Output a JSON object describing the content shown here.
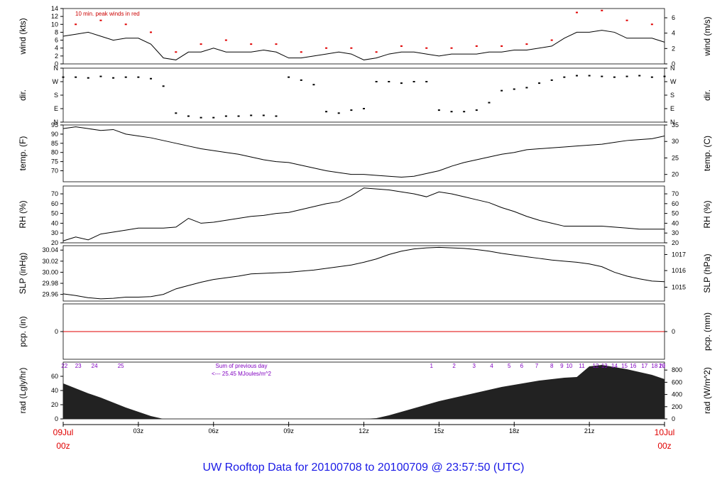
{
  "footer": {
    "title": "UW Rooftop Data for 20100708  to  20100709 @ 23:57:50  (UTC)"
  },
  "chart_data": {
    "type": "line",
    "time_axis": {
      "hours": [
        0,
        3,
        6,
        9,
        12,
        15,
        18,
        21,
        24
      ],
      "tick_labels": [
        "09Jul",
        "03z",
        "06z",
        "09z",
        "12z",
        "15z",
        "18z",
        "21z",
        "10Jul"
      ],
      "start_label": [
        "09Jul",
        "00z"
      ],
      "end_label": [
        "10Jul",
        "00z"
      ],
      "date_label_color": "#e00000"
    },
    "panels": [
      {
        "id": "wind",
        "ylabel_left": "wind (kts)",
        "ylabel_right": "wind (m/s)",
        "ylim": [
          0,
          14
        ],
        "yticks_left": [
          0,
          2,
          4,
          6,
          8,
          10,
          12,
          14
        ],
        "yticks_right": [
          {
            "label": "0",
            "value": 0
          },
          {
            "label": "2",
            "value": 3.89
          },
          {
            "label": "4",
            "value": 7.78
          },
          {
            "label": "6",
            "value": 11.66
          }
        ],
        "annotation": "10 min. peak winds in red",
        "annotation_color": "#cc0000",
        "series": [
          {
            "name": "wind",
            "color": "#000000",
            "x": [
              0,
              0.5,
              1,
              1.5,
              2,
              2.5,
              3,
              3.5,
              4,
              4.5,
              5,
              5.5,
              6,
              6.5,
              7,
              7.5,
              8,
              8.5,
              9,
              9.5,
              10,
              10.5,
              11,
              11.5,
              12,
              12.5,
              13,
              13.5,
              14,
              14.5,
              15,
              15.5,
              16,
              16.5,
              17,
              17.5,
              18,
              18.5,
              19,
              19.5,
              20,
              20.5,
              21,
              21.5,
              22,
              22.5,
              23,
              23.5,
              24
            ],
            "y": [
              7,
              7.5,
              8,
              7,
              6,
              6.5,
              6.5,
              5,
              1.5,
              1,
              3,
              3,
              4,
              3,
              3,
              3,
              3.5,
              3,
              1.5,
              1.5,
              2,
              2.5,
              3,
              2.5,
              1,
              1.5,
              2.5,
              3,
              3,
              2.5,
              2,
              2.5,
              2.5,
              2.5,
              3,
              3,
              3.5,
              3.5,
              4,
              4.5,
              6.5,
              8,
              8,
              8.5,
              8,
              6.5,
              6.5,
              6.5,
              5.5
            ]
          },
          {
            "name": "10 min. peak winds",
            "color": "#e00000",
            "x": [
              0.5,
              1.5,
              2.5,
              3.5,
              4.5,
              5.5,
              6.5,
              7.5,
              8.5,
              9.5,
              10.5,
              11.5,
              12.5,
              13.5,
              14.5,
              15.5,
              16.5,
              17.5,
              18.5,
              19.5,
              20.5,
              21.5,
              22.5,
              23.5
            ],
            "y": [
              10,
              11,
              10,
              8,
              3,
              5,
              6,
              5,
              5,
              3,
              4,
              4,
              3,
              4.5,
              4,
              4,
              4.5,
              4.5,
              5,
              6,
              13,
              13.5,
              11,
              10
            ]
          }
        ]
      },
      {
        "id": "dir",
        "ylabel_left": "dir.",
        "ylabel_right": "dir.",
        "yticks_left": [
          "N",
          "E",
          "S",
          "W",
          "N"
        ],
        "yticks_right": [
          "N",
          "E",
          "S",
          "W",
          "N"
        ],
        "ylim": [
          0,
          360
        ],
        "series": [
          {
            "name": "dir",
            "color": "#000000",
            "style": "points",
            "x": [
              0,
              0.5,
              1,
              1.5,
              2,
              2.5,
              3,
              3.5,
              4,
              4.5,
              5,
              5.5,
              6,
              6.5,
              7,
              7.5,
              8,
              8.5,
              9,
              9.5,
              10,
              10.5,
              11,
              11.5,
              12,
              12.5,
              13,
              13.5,
              14,
              14.5,
              15,
              15.5,
              16,
              16.5,
              17,
              17.5,
              18,
              18.5,
              19,
              19.5,
              20,
              20.5,
              21,
              21.5,
              22,
              22.5,
              23,
              23.5,
              24
            ],
            "y": [
              300,
              300,
              295,
              305,
              295,
              300,
              300,
              290,
              240,
              60,
              40,
              30,
              30,
              40,
              40,
              45,
              45,
              40,
              300,
              280,
              250,
              70,
              60,
              80,
              90,
              270,
              270,
              260,
              270,
              270,
              80,
              70,
              70,
              80,
              130,
              210,
              220,
              230,
              260,
              280,
              300,
              310,
              310,
              305,
              300,
              305,
              310,
              300,
              305
            ]
          }
        ]
      },
      {
        "id": "temp",
        "ylabel_left": "temp. (F)",
        "ylabel_right": "temp. (C)",
        "ylim": [
          64,
          95
        ],
        "yticks_left": [
          70,
          75,
          80,
          85,
          90,
          95
        ],
        "yticks_right": [
          {
            "label": "20",
            "value": 68
          },
          {
            "label": "25",
            "value": 77
          },
          {
            "label": "30",
            "value": 86
          },
          {
            "label": "35",
            "value": 95
          }
        ],
        "series": [
          {
            "name": "temperature",
            "color": "#000000",
            "x": [
              0,
              0.5,
              1,
              1.5,
              2,
              2.5,
              3,
              3.5,
              4,
              4.5,
              5,
              5.5,
              6,
              6.5,
              7,
              7.5,
              8,
              8.5,
              9,
              9.5,
              10,
              10.5,
              11,
              11.5,
              12,
              12.5,
              13,
              13.5,
              14,
              14.5,
              15,
              15.5,
              16,
              16.5,
              17,
              17.5,
              18,
              18.5,
              19,
              19.5,
              20,
              20.5,
              21,
              21.5,
              22,
              22.5,
              23,
              23.5,
              24
            ],
            "y": [
              93,
              94,
              93,
              92,
              92.5,
              90,
              89,
              88,
              86.5,
              85,
              83.5,
              82,
              81,
              80,
              79,
              77.5,
              76,
              75,
              74.5,
              73,
              71.5,
              70,
              69,
              68,
              68,
              67.5,
              67,
              66.5,
              67,
              68.5,
              70,
              72.5,
              74.5,
              76,
              77.5,
              79,
              80,
              81.5,
              82,
              82.5,
              83,
              83.5,
              84,
              84.5,
              85.5,
              86.5,
              87,
              87.5,
              89
            ]
          }
        ]
      },
      {
        "id": "rh",
        "ylabel_left": "RH (%)",
        "ylabel_right": "RH (%)",
        "ylim": [
          20,
          78
        ],
        "yticks_left": [
          20,
          30,
          40,
          50,
          60,
          70
        ],
        "yticks_right": [
          20,
          30,
          40,
          50,
          60,
          70
        ],
        "series": [
          {
            "name": "RH",
            "color": "#000000",
            "x": [
              0,
              0.5,
              1,
              1.5,
              2,
              2.5,
              3,
              3.5,
              4,
              4.5,
              5,
              5.5,
              6,
              6.5,
              7,
              7.5,
              8,
              8.5,
              9,
              9.5,
              10,
              10.5,
              11,
              11.5,
              12,
              12.5,
              13,
              13.5,
              14,
              14.5,
              15,
              15.5,
              16,
              16.5,
              17,
              17.5,
              18,
              18.5,
              19,
              19.5,
              20,
              20.5,
              21,
              21.5,
              22,
              22.5,
              23,
              23.5,
              24
            ],
            "y": [
              22,
              26,
              23,
              29,
              31,
              33,
              35,
              35,
              35,
              36,
              45,
              40,
              41,
              43,
              45,
              47,
              48,
              50,
              51,
              54,
              57,
              60,
              62,
              68,
              76,
              75,
              74,
              72,
              70,
              67,
              72,
              70,
              67,
              64,
              61,
              56,
              52,
              47,
              43,
              40,
              37,
              37,
              37,
              37,
              36,
              35,
              34,
              34,
              34
            ]
          }
        ]
      },
      {
        "id": "slp",
        "ylabel_left": "SLP (inHg)",
        "ylabel_right": "SLP (hPa)",
        "ylim": [
          29.948,
          30.048
        ],
        "yticks_left": [
          "29.96",
          "29.98",
          "30.00",
          "30.02",
          "30.04"
        ],
        "yticks_left_values": [
          29.96,
          29.98,
          30.0,
          30.02,
          30.04
        ],
        "yticks_right": [
          {
            "label": "1015",
            "value": 29.973
          },
          {
            "label": "1016",
            "value": 30.003
          },
          {
            "label": "1017",
            "value": 30.032
          }
        ],
        "series": [
          {
            "name": "SLP",
            "color": "#000000",
            "x": [
              0,
              0.5,
              1,
              1.5,
              2,
              2.5,
              3,
              3.5,
              4,
              4.5,
              5,
              5.5,
              6,
              6.5,
              7,
              7.5,
              8,
              8.5,
              9,
              9.5,
              10,
              10.5,
              11,
              11.5,
              12,
              12.5,
              13,
              13.5,
              14,
              14.5,
              15,
              15.5,
              16,
              16.5,
              17,
              17.5,
              18,
              18.5,
              19,
              19.5,
              20,
              20.5,
              21,
              21.5,
              22,
              22.5,
              23,
              23.5,
              24
            ],
            "y": [
              29.961,
              29.958,
              29.954,
              29.952,
              29.953,
              29.955,
              29.955,
              29.956,
              29.96,
              29.97,
              29.976,
              29.982,
              29.987,
              29.99,
              29.993,
              29.997,
              29.998,
              29.999,
              30.0,
              30.002,
              30.004,
              30.007,
              30.01,
              30.013,
              30.018,
              30.024,
              30.032,
              30.038,
              30.042,
              30.044,
              30.045,
              30.044,
              30.043,
              30.041,
              30.038,
              30.034,
              30.031,
              30.028,
              30.025,
              30.022,
              30.02,
              30.018,
              30.015,
              30.01,
              30.0,
              29.993,
              29.988,
              29.984,
              29.983
            ]
          }
        ]
      },
      {
        "id": "pcp",
        "ylabel_left": "pcp. (in)",
        "ylabel_right": "pcp. (mm)",
        "ylim": [
          -1,
          1
        ],
        "yticks_left": [
          0
        ],
        "yticks_right": [
          0
        ],
        "series": [
          {
            "name": "precipitation",
            "color": "#e00000",
            "x": [
              0,
              24
            ],
            "y": [
              0,
              0
            ]
          }
        ]
      },
      {
        "id": "rad",
        "ylabel_left": "rad (Lgly/hr)",
        "ylabel_right": "rad (W/m^2)",
        "ylim": [
          0,
          80
        ],
        "yticks_left": [
          0,
          20,
          40,
          60
        ],
        "yticks_right": [
          {
            "label": "0",
            "value": 0
          },
          {
            "label": "200",
            "value": 17.2
          },
          {
            "label": "400",
            "value": 34.4
          },
          {
            "label": "600",
            "value": 51.6
          },
          {
            "label": "800",
            "value": 68.8
          }
        ],
        "annotation": "Sum of previous day",
        "annotation_2": "<--- 25.45 MJoules/m^2",
        "annotation_color": "#8000c0",
        "hour_labels": [
          "22",
          "23",
          "24",
          "25",
          "1",
          "2",
          "3",
          "4",
          "5",
          "6",
          "7",
          "8",
          "9",
          "10",
          "11",
          "12",
          "13",
          "14",
          "15",
          "16",
          "17",
          "18",
          "19",
          "20"
        ],
        "hour_label_positions": [
          0.05,
          0.6,
          1.25,
          2.3,
          14.7,
          15.6,
          16.4,
          17.1,
          17.8,
          18.3,
          18.9,
          19.5,
          19.9,
          20.2,
          20.7,
          21.25,
          21.6,
          22.0,
          22.4,
          22.75,
          23.2,
          23.6,
          23.95,
          24.2
        ],
        "hour_label_color": "#8000c0",
        "series": [
          {
            "name": "solar radiation",
            "color": "#222222",
            "style": "area",
            "x": [
              0,
              0.5,
              1,
              1.5,
              2,
              2.5,
              3,
              3.5,
              4,
              4.5,
              11.5,
              12,
              12.5,
              13,
              13.5,
              14,
              14.5,
              15,
              15.5,
              16,
              16.5,
              17,
              17.5,
              18,
              18.5,
              19,
              19.5,
              20,
              20.5,
              21,
              21.5,
              22,
              22.5,
              23,
              23.5,
              24
            ],
            "y": [
              50,
              43,
              36,
              30,
              23,
              16,
              10,
              4,
              0,
              0,
              0,
              0,
              1,
              5,
              10,
              15,
              20,
              25,
              29,
              33,
              37,
              41,
              45,
              48,
              51,
              54,
              56,
              58,
              59,
              74,
              76,
              73,
              70,
              66,
              62,
              56
            ]
          }
        ]
      }
    ]
  }
}
